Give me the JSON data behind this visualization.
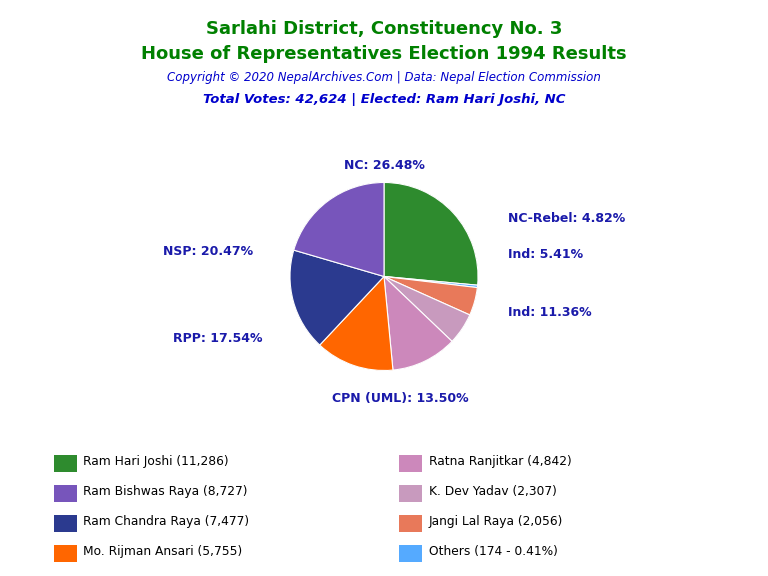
{
  "title1": "Sarlahi District, Constituency No. 3",
  "title2": "House of Representatives Election 1994 Results",
  "copyright": "Copyright © 2020 NepalArchives.Com | Data: Nepal Election Commission",
  "total_votes": "Total Votes: 42,624 | Elected: Ram Hari Joshi, NC",
  "slices_ordered": [
    {
      "label": "NC: 26.48%",
      "value": 11286,
      "color": "#2e8b2e"
    },
    {
      "label": "Others",
      "value": 174,
      "color": "#55aaff"
    },
    {
      "label": "NC-Rebel: 4.82%",
      "value": 2056,
      "color": "#e8795a"
    },
    {
      "label": "Ind: 5.41%",
      "value": 2307,
      "color": "#c89abe"
    },
    {
      "label": "Ind: 11.36%",
      "value": 4842,
      "color": "#cc88bb"
    },
    {
      "label": "CPN (UML): 13.50%",
      "value": 5755,
      "color": "#ff6600"
    },
    {
      "label": "RPP: 17.54%",
      "value": 7477,
      "color": "#2b3a8f"
    },
    {
      "label": "NSP: 20.47%",
      "value": 8727,
      "color": "#7755bb"
    }
  ],
  "legend_entries": [
    {
      "name": "Ram Hari Joshi (11,286)",
      "color": "#2e8b2e"
    },
    {
      "name": "Ram Bishwas Raya (8,727)",
      "color": "#7755bb"
    },
    {
      "name": "Ram Chandra Raya (7,477)",
      "color": "#2b3a8f"
    },
    {
      "name": "Mo. Rijman Ansari (5,755)",
      "color": "#ff6600"
    },
    {
      "name": "Ratna Ranjitkar (4,842)",
      "color": "#cc88bb"
    },
    {
      "name": "K. Dev Yadav (2,307)",
      "color": "#c89abe"
    },
    {
      "name": "Jangi Lal Raya (2,056)",
      "color": "#e8795a"
    },
    {
      "name": "Others (174 - 0.41%)",
      "color": "#55aaff"
    }
  ],
  "title_color": "#008000",
  "copyright_color": "#0000cc",
  "label_color": "#1a1aaa",
  "background_color": "#ffffff"
}
